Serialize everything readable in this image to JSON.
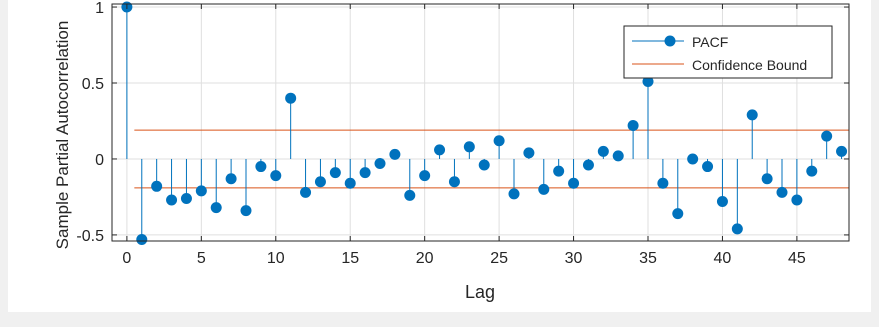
{
  "chart_data": {
    "type": "stem",
    "xlabel": "Lag",
    "ylabel": "Sample Partial Autocorrelation",
    "xlim": [
      -1,
      48.5
    ],
    "ylim": [
      -0.54,
      1.02
    ],
    "xticks": [
      0,
      5,
      10,
      15,
      20,
      25,
      30,
      35,
      40,
      45
    ],
    "yticks": [
      -0.5,
      0,
      0.5,
      1
    ],
    "ytick_labels": [
      "-0.5",
      "0",
      "0.5",
      "1"
    ],
    "grid": true,
    "legend_placement": "top-right",
    "series": [
      {
        "name": "PACF",
        "color": "#0072bd",
        "x": [
          0,
          1,
          2,
          3,
          4,
          5,
          6,
          7,
          8,
          9,
          10,
          11,
          12,
          13,
          14,
          15,
          16,
          17,
          18,
          19,
          20,
          21,
          22,
          23,
          24,
          25,
          26,
          27,
          28,
          29,
          30,
          31,
          32,
          33,
          34,
          35,
          36,
          37,
          38,
          39,
          40,
          41,
          42,
          43,
          44,
          45,
          46,
          47,
          48
        ],
        "values": [
          1.0,
          -0.53,
          -0.18,
          -0.27,
          -0.26,
          -0.21,
          -0.32,
          -0.13,
          -0.34,
          -0.05,
          -0.11,
          0.4,
          -0.22,
          -0.15,
          -0.09,
          -0.16,
          -0.09,
          -0.03,
          0.03,
          -0.24,
          -0.11,
          0.06,
          -0.15,
          0.08,
          -0.04,
          0.12,
          -0.23,
          0.04,
          -0.2,
          -0.08,
          -0.16,
          -0.04,
          0.05,
          0.02,
          0.22,
          0.51,
          -0.16,
          -0.36,
          0.0,
          -0.05,
          -0.28,
          -0.46,
          0.29,
          -0.13,
          -0.22,
          -0.27,
          -0.08,
          0.15,
          0.05
        ]
      }
    ],
    "confidence_bound": {
      "name": "Confidence Bound",
      "color": "#d95319",
      "upper": 0.19,
      "lower": -0.19
    }
  }
}
